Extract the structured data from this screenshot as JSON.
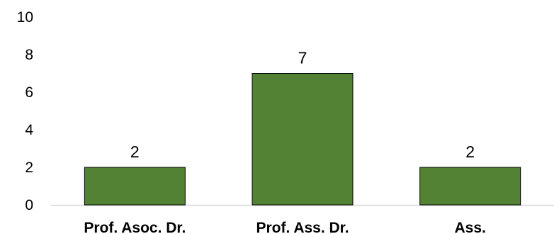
{
  "chart_data": {
    "type": "bar",
    "categories": [
      "Prof. Asoc. Dr.",
      "Prof. Ass. Dr.",
      "Ass."
    ],
    "values": [
      2,
      7,
      2
    ],
    "data_labels": [
      "2",
      "7",
      "2"
    ],
    "ylim": [
      0,
      10
    ],
    "yticks": [
      0,
      2,
      4,
      6,
      8,
      10
    ],
    "ytick_labels": [
      "0",
      "2",
      "4",
      "6",
      "8",
      "10"
    ],
    "bar_color": "#548235",
    "bar_edge_color": "#000000",
    "grid": false,
    "legend": "none"
  }
}
